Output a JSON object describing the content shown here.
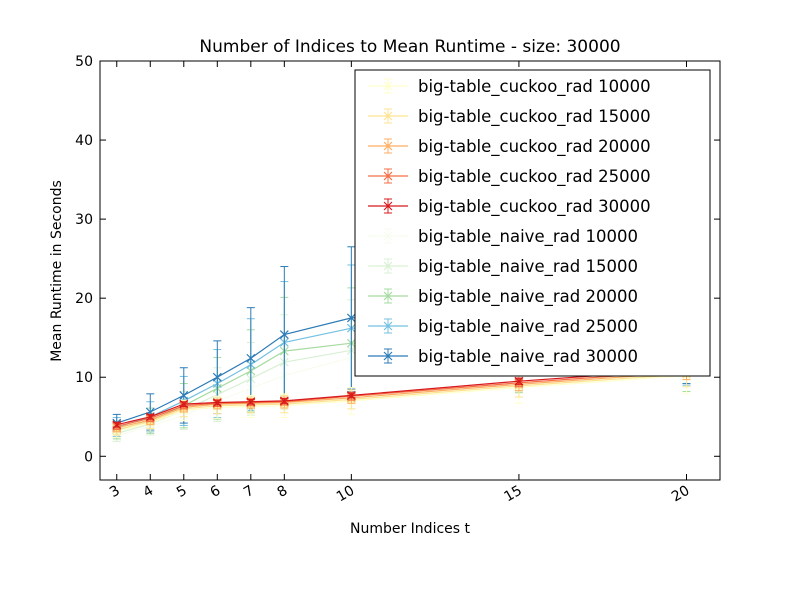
{
  "chart_data": {
    "type": "line",
    "title": "Number of Indices to Mean Runtime - size: 30000",
    "xlabel": "Number Indices t",
    "ylabel": "Mean Runtime in Seconds",
    "xlim": [
      2.5,
      21
    ],
    "ylim": [
      -3,
      50
    ],
    "x": [
      3,
      4,
      5,
      6,
      7,
      8,
      10,
      15,
      20
    ],
    "x_tick_labels": [
      "3",
      "4",
      "5",
      "6",
      "7",
      "8",
      "10",
      "15",
      "20"
    ],
    "y_ticks": [
      0,
      10,
      20,
      30,
      40,
      50
    ],
    "y_tick_labels": [
      "0",
      "10",
      "20",
      "30",
      "40",
      "50"
    ],
    "grid": false,
    "legend_position": "top-right",
    "series": [
      {
        "name": "big-table_cuckoo_rad 10000",
        "color": "#ffffcc",
        "values": [
          3.2,
          4.2,
          5.8,
          6.2,
          6.3,
          6.4,
          7.0,
          8.7,
          10.2
        ],
        "errors": [
          0.8,
          1.0,
          1.3,
          1.4,
          1.4,
          1.5,
          1.7,
          2.0,
          2.3
        ]
      },
      {
        "name": "big-table_cuckoo_rad 15000",
        "color": "#fee391",
        "values": [
          3.4,
          4.4,
          6.0,
          6.4,
          6.5,
          6.6,
          7.2,
          8.9,
          10.4
        ],
        "errors": [
          0.7,
          0.9,
          1.0,
          1.0,
          1.0,
          1.1,
          1.2,
          1.4,
          1.6
        ]
      },
      {
        "name": "big-table_cuckoo_rad 20000",
        "color": "#fdae61",
        "values": [
          3.6,
          4.6,
          6.2,
          6.6,
          6.7,
          6.8,
          7.4,
          9.1,
          10.6
        ],
        "errors": [
          0.5,
          0.6,
          0.6,
          0.6,
          0.6,
          0.7,
          0.7,
          0.8,
          0.9
        ]
      },
      {
        "name": "big-table_cuckoo_rad 25000",
        "color": "#f46d43",
        "values": [
          3.8,
          4.8,
          6.4,
          6.7,
          6.8,
          6.9,
          7.6,
          9.3,
          10.8
        ],
        "errors": [
          0.4,
          0.4,
          0.4,
          0.4,
          0.4,
          0.4,
          0.5,
          0.5,
          0.6
        ]
      },
      {
        "name": "big-table_cuckoo_rad 30000",
        "color": "#d7191c",
        "values": [
          4.0,
          5.0,
          6.6,
          6.8,
          6.9,
          7.0,
          7.7,
          9.5,
          11.0
        ],
        "errors": [
          0.3,
          0.3,
          0.3,
          0.3,
          0.3,
          0.3,
          0.3,
          0.4,
          0.4
        ]
      },
      {
        "name": "big-table_naive_rad 10000",
        "color": "#f7fcf0",
        "values": [
          2.6,
          3.8,
          5.2,
          7.0,
          8.6,
          10.2,
          12.5,
          14.0,
          14.5
        ],
        "errors": [
          0.8,
          1.1,
          1.8,
          2.4,
          3.2,
          4.0,
          4.6,
          5.0,
          5.2
        ]
      },
      {
        "name": "big-table_naive_rad 15000",
        "color": "#d9f0d3",
        "values": [
          2.9,
          4.1,
          5.8,
          7.8,
          9.8,
          11.9,
          13.4,
          14.6,
          15.0
        ],
        "errors": [
          1.0,
          1.4,
          2.4,
          3.4,
          4.6,
          6.0,
          6.4,
          6.6,
          6.8
        ]
      },
      {
        "name": "big-table_naive_rad 20000",
        "color": "#a6dba0",
        "values": [
          3.3,
          4.5,
          6.4,
          8.6,
          10.8,
          13.3,
          14.3,
          15.3,
          15.6
        ],
        "errors": [
          1.1,
          1.6,
          2.8,
          3.9,
          5.2,
          6.8,
          7.0,
          7.2,
          7.4
        ]
      },
      {
        "name": "big-table_naive_rad 25000",
        "color": "#74c0e0",
        "values": [
          3.7,
          5.0,
          7.0,
          9.2,
          11.6,
          14.4,
          16.2,
          17.0,
          17.4
        ],
        "errors": [
          1.2,
          1.9,
          3.1,
          4.3,
          5.8,
          7.7,
          8.0,
          8.2,
          8.4
        ]
      },
      {
        "name": "big-table_naive_rad 30000",
        "color": "#2c7bb6",
        "values": [
          4.2,
          5.6,
          7.7,
          10.0,
          12.4,
          15.4,
          17.5,
          18.3,
          18.6
        ],
        "errors": [
          1.1,
          2.3,
          3.5,
          4.6,
          6.4,
          8.6,
          9.0,
          9.2,
          9.4
        ]
      }
    ]
  }
}
